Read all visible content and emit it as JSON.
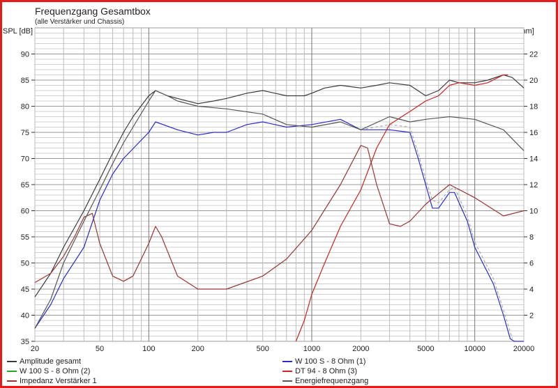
{
  "chart_data": {
    "type": "line",
    "title": "Frequenzgang Gesamtbox",
    "subtitle": "(alle Verstärker und Chassis)",
    "ylabel": "SPL [dB]",
    "y2label": "Z [Ohm]",
    "xscale": "log",
    "xlim": [
      20,
      20000
    ],
    "ylim": [
      35,
      95
    ],
    "y2lim": [
      0,
      24
    ],
    "grid": true,
    "xticks": [
      20,
      50,
      100,
      200,
      500,
      1000,
      2000,
      5000,
      10000,
      20000
    ],
    "yticks": [
      35,
      40,
      45,
      50,
      55,
      60,
      65,
      70,
      75,
      80,
      85,
      90
    ],
    "y2ticks": [
      2,
      4,
      6,
      8,
      10,
      12,
      14,
      16,
      18,
      20,
      22
    ],
    "legend_placement": "bottom",
    "series": [
      {
        "name": "Amplitude gesamt",
        "color": "#3a3a3a",
        "axis": "left",
        "x": [
          20,
          25,
          30,
          40,
          50,
          60,
          70,
          80,
          100,
          110,
          130,
          150,
          200,
          250,
          300,
          400,
          500,
          700,
          900,
          1000,
          1200,
          1500,
          2000,
          2500,
          3000,
          4000,
          5000,
          6000,
          7000,
          8000,
          10000,
          12000,
          15000,
          17000,
          20000
        ],
        "y": [
          43.5,
          48,
          53,
          60,
          66,
          71,
          75,
          78,
          82,
          83,
          82,
          81.5,
          80.5,
          81,
          81.5,
          82.5,
          83,
          82,
          82,
          82.5,
          83.5,
          84,
          83.5,
          84,
          84.5,
          84,
          82,
          83,
          85,
          84.5,
          84.5,
          85,
          86,
          85.5,
          83.5
        ]
      },
      {
        "name": "W 100 S - 8 Ohm (1)",
        "color": "#2a2acc",
        "axis": "left",
        "x": [
          20,
          25,
          30,
          40,
          50,
          60,
          70,
          100,
          110,
          150,
          200,
          250,
          300,
          400,
          500,
          700,
          1000,
          1500,
          2000,
          3000,
          4000,
          4500,
          5000,
          5500,
          6000,
          7000,
          7500,
          9000,
          10000,
          13000,
          15000,
          16500,
          17500,
          20000
        ],
        "y": [
          37.5,
          42,
          47,
          53,
          62,
          67,
          70,
          75,
          77,
          75.5,
          74.5,
          75,
          75,
          76.5,
          77,
          76,
          76.5,
          77.5,
          75.5,
          75.5,
          75,
          70,
          65,
          60.5,
          60.5,
          63.5,
          63.5,
          58,
          53,
          46,
          40,
          35.5,
          35,
          35
        ]
      },
      {
        "name": "W 100 S - 8 Ohm (2)",
        "color": "#22aa22",
        "axis": "left",
        "dashed": true,
        "x": [
          2000,
          3000,
          4000,
          4500,
          5000,
          5500,
          6000,
          7000,
          7500,
          9000,
          10000,
          13000,
          15000,
          17000
        ],
        "y": [
          75.5,
          76.5,
          76,
          71,
          66,
          62,
          61.5,
          64,
          64.5,
          59,
          54,
          47,
          41,
          35.5
        ]
      },
      {
        "name": "DT 94 - 8 Ohm (3)",
        "color": "#cc2222",
        "axis": "left",
        "x": [
          800,
          900,
          1000,
          1200,
          1500,
          2000,
          2500,
          3000,
          4000,
          5000,
          6000,
          7000,
          8000,
          10000,
          12000,
          15000,
          16000
        ],
        "y": [
          35,
          39,
          44,
          50,
          57,
          64,
          72,
          76.5,
          79,
          81,
          82,
          84,
          84.5,
          84,
          84.5,
          86,
          86
        ]
      },
      {
        "name": "Impedanz Verstärker 1",
        "color": "#993333",
        "axis": "right",
        "x": [
          20,
          25,
          30,
          35,
          40,
          45,
          50,
          60,
          70,
          80,
          100,
          110,
          120,
          150,
          200,
          300,
          500,
          700,
          1000,
          1500,
          2000,
          2200,
          2500,
          3000,
          3500,
          4000,
          5000,
          7000,
          10000,
          15000,
          20000
        ],
        "y": [
          4.5,
          5.2,
          6.5,
          8,
          9.5,
          9.8,
          7.5,
          5,
          4.6,
          5,
          7.5,
          8.8,
          8,
          5,
          4,
          4,
          5,
          6.3,
          8.5,
          12,
          15,
          14.8,
          12,
          9,
          8.8,
          9.2,
          10.5,
          12,
          11,
          9.6,
          10
        ]
      },
      {
        "name": "Energiefrequenzgang",
        "color": "#555555",
        "axis": "left",
        "x": [
          20,
          25,
          30,
          40,
          50,
          60,
          70,
          80,
          100,
          110,
          130,
          150,
          200,
          300,
          500,
          700,
          1000,
          1500,
          2000,
          3000,
          4000,
          5000,
          7000,
          10000,
          15000,
          20000
        ],
        "y": [
          37.5,
          43,
          50,
          58,
          64,
          69,
          73,
          76,
          81,
          83,
          82,
          81,
          80,
          79.5,
          78.5,
          76.5,
          76,
          77,
          75.5,
          78,
          77,
          77.5,
          78,
          77.5,
          75.5,
          71.5
        ]
      }
    ]
  }
}
